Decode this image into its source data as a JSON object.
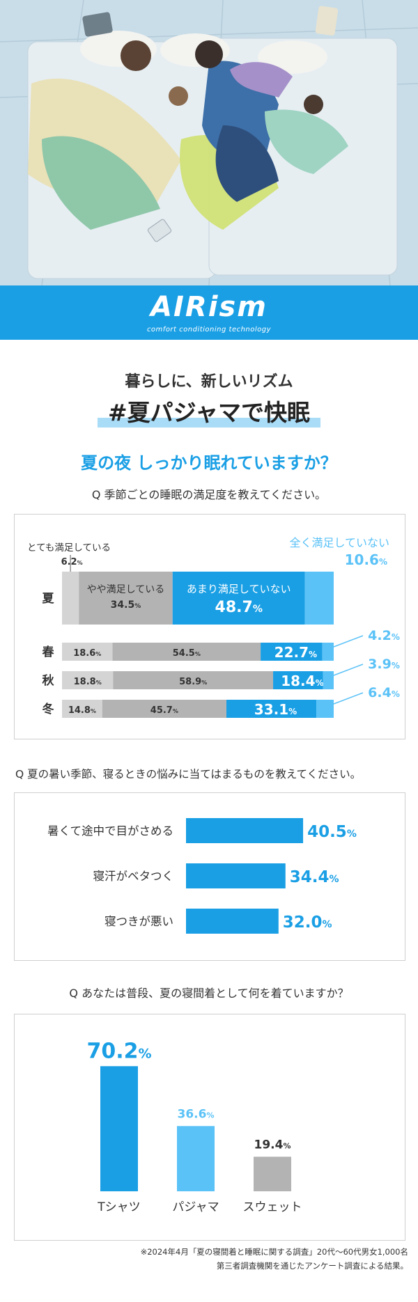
{
  "brand": {
    "logo": "AIRism",
    "tagline": "comfort conditioning technology"
  },
  "headline": {
    "line1": "暮らしに、新しいリズム",
    "line2": "#夏パジャマで快眠"
  },
  "section_title": "夏の夜 しっかり眠れていますか？",
  "questions": {
    "q1": "Q 季節ごとの睡眠の満足度を教えてください。",
    "q2": "Q 夏の暑い季節、寝るときの悩みに当てはまるものを教えてください。",
    "q3": "Q あなたは普段、夏の寝間着として何を着ていますか？"
  },
  "footnote": {
    "line1": "※2024年4月「夏の寝間着と睡眠に関する調査」20代～60代男女1,000名",
    "line2": "第三者調査機関を通じたアンケート調査による結果。"
  },
  "colors": {
    "blue": "#1a9fe5",
    "light_blue": "#5bc2f7",
    "gray": "#b3b3b3",
    "light_gray": "#d4d4d4"
  },
  "chart_data": [
    {
      "type": "bar",
      "orientation": "horizontal",
      "stacked": true,
      "categories": [
        "夏",
        "春",
        "秋",
        "冬"
      ],
      "series": [
        {
          "name": "とても満足している",
          "values": [
            6.2,
            18.6,
            18.8,
            14.8
          ]
        },
        {
          "name": "やや満足している",
          "values": [
            34.5,
            54.5,
            58.9,
            45.7
          ]
        },
        {
          "name": "あまり満足していない",
          "values": [
            48.7,
            22.7,
            18.4,
            33.1
          ]
        },
        {
          "name": "全く満足していない",
          "values": [
            10.6,
            4.2,
            3.9,
            6.4
          ]
        }
      ],
      "value_suffix": "%"
    },
    {
      "type": "bar",
      "orientation": "horizontal",
      "categories": [
        "暑くて途中で目がさめる",
        "寝汗がベタつく",
        "寝つきが悪い"
      ],
      "values": [
        40.5,
        34.4,
        32.0
      ],
      "value_suffix": "%"
    },
    {
      "type": "bar",
      "orientation": "vertical",
      "categories": [
        "Tシャツ",
        "パジャマ",
        "スウェット"
      ],
      "values": [
        70.2,
        36.6,
        19.4
      ],
      "value_suffix": "%"
    }
  ]
}
